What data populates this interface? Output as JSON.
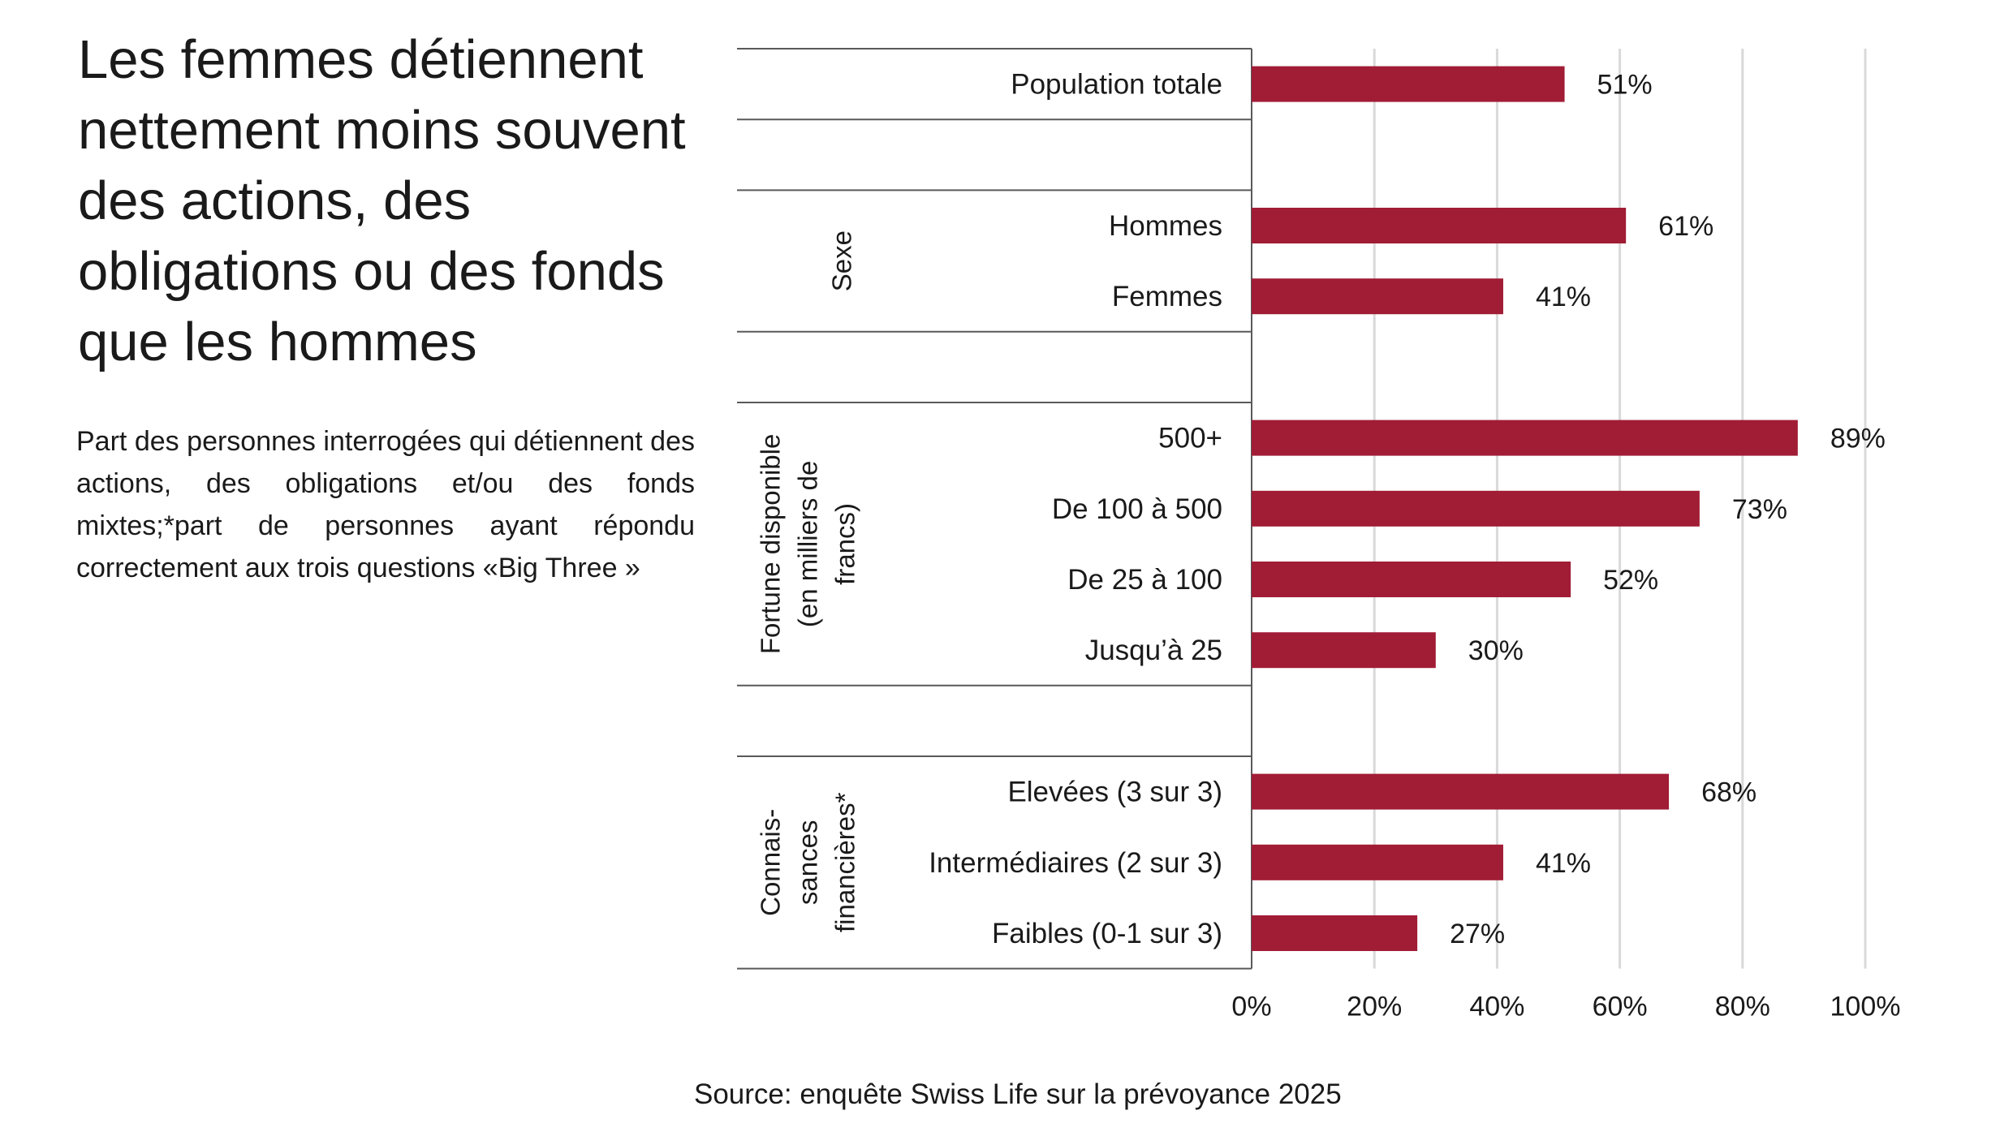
{
  "title": "Les femmes détiennent nettement moins souvent des actions, des obligations ou des fonds que les hommes",
  "subtitle": "Part des personnes interrogées qui détiennent des actions, des obligations et/ou des fonds mixtes;*part de personnes ayant répondu correctement aux trois questions «Big Three »",
  "source": "Source: enquête Swiss Life sur la prévoyance 2025",
  "colors": {
    "bar": "#A11C35",
    "grid": "#D9D9D9",
    "axis": "#595959"
  },
  "chart_data": {
    "type": "bar",
    "orientation": "horizontal",
    "xlim": [
      0,
      100
    ],
    "x_ticks": [
      "0%",
      "20%",
      "40%",
      "60%",
      "80%",
      "100%"
    ],
    "grid": true,
    "groups": [
      {
        "label": "",
        "categories": [
          "Population totale"
        ],
        "values": [
          51
        ],
        "value_labels": [
          "51%"
        ]
      },
      {
        "label": "Sexe",
        "categories": [
          "Hommes",
          "Femmes"
        ],
        "values": [
          61,
          41
        ],
        "value_labels": [
          "61%",
          "41%"
        ]
      },
      {
        "label": "Fortune disponible (en milliers de francs)",
        "label_lines": [
          "Fortune disponible",
          "(en milliers de",
          "francs)"
        ],
        "categories": [
          "500+",
          "De 100 à 500",
          "De 25 à 100",
          "Jusqu’à 25"
        ],
        "values": [
          89,
          73,
          52,
          30
        ],
        "value_labels": [
          "89%",
          "73%",
          "52%",
          "30%"
        ]
      },
      {
        "label": "Connaissances financières*",
        "label_lines": [
          "Connais-",
          "sances",
          "financières*"
        ],
        "categories": [
          "Elevées (3 sur 3)",
          "Intermédiaires (2 sur 3)",
          "Faibles (0-1 sur 3)"
        ],
        "values": [
          68,
          41,
          27
        ],
        "value_labels": [
          "68%",
          "41%",
          "27%"
        ]
      }
    ]
  }
}
